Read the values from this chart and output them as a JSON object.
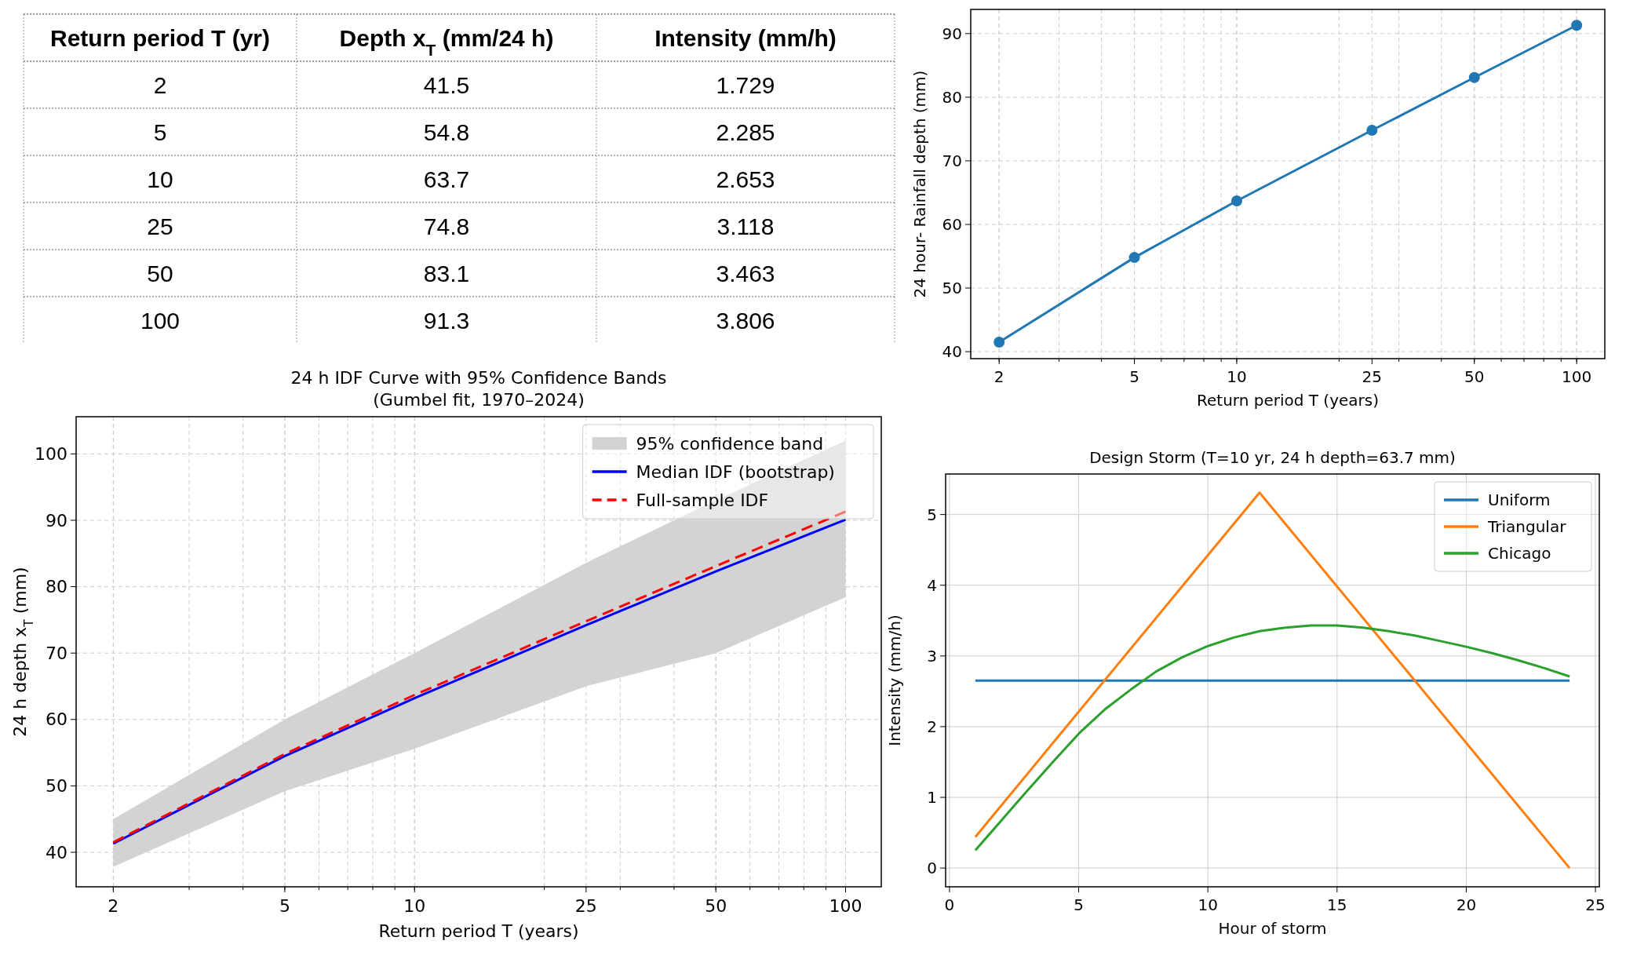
{
  "chart_data": [
    {
      "type": "other",
      "xlabel": "Return period T (yr)",
      "categories": [
        "2",
        "5",
        "10",
        "25",
        "50",
        "100"
      ],
      "data_labels": true,
      "series": [
        {
          "name": "Depth x$_{T}$ (mm/24 h)",
          "values": [
            41.5,
            54.8,
            63.7,
            74.8,
            83.1,
            91.3
          ]
        },
        {
          "name": "Intensity (mm/h)",
          "values": [
            1.729,
            2.285,
            2.653,
            3.118,
            3.463,
            3.806
          ]
        }
      ]
    },
    {
      "type": "line",
      "xlabel": "Return period T (years)",
      "ylabel": "24 hour- Rainfall depth (mm)",
      "x": [
        2,
        5,
        10,
        25,
        50,
        100
      ],
      "log": "x",
      "xlim": [
        1.65,
        121
      ],
      "xticks": [
        2,
        5,
        10,
        25,
        50,
        100
      ],
      "ylim": [
        38.9,
        93.8
      ],
      "yticks": [
        40,
        50,
        60,
        70,
        80,
        90
      ],
      "grid": true,
      "marker": "circle",
      "legend": false,
      "series": [
        {
          "color": "#1f77b4",
          "values": [
            41.5,
            54.8,
            63.7,
            74.8,
            83.1,
            91.3
          ]
        }
      ]
    },
    {
      "type": "line",
      "title": "24 h IDF Curve with 95% Confidence Bands\n(Gumbel fit, 1970–2024)",
      "xlabel": "Return period T (years)",
      "ylabel": "24 h depth x$_{T}$ (mm)",
      "x": [
        2,
        5,
        10,
        25,
        50,
        100
      ],
      "log": "x",
      "xlim": [
        1.64,
        121
      ],
      "xticks": [
        2,
        5,
        10,
        25,
        50,
        100
      ],
      "ylim": [
        34.8,
        105.6
      ],
      "yticks": [
        40,
        50,
        60,
        70,
        80,
        90,
        100
      ],
      "grid": true,
      "legend": "top right",
      "series": [
        {
          "name": "95% confidence band",
          "type": "area",
          "color": "#d3d3d3",
          "values": [
            null,
            null,
            null,
            null,
            null,
            null
          ],
          "lower": [
            37.8,
            49.2,
            55.6,
            65,
            70,
            78.4
          ],
          "upper": [
            45,
            60,
            70,
            83.6,
            93,
            102
          ]
        },
        {
          "name": "Median IDF (bootstrap)",
          "color": "#0000ff",
          "values": [
            41.3,
            54.5,
            63.2,
            74.2,
            82.3,
            90.1
          ]
        },
        {
          "name": "Full-sample IDF",
          "color": "#ff0000",
          "line_style": "dashed",
          "values": [
            41.5,
            54.8,
            63.7,
            74.8,
            83.1,
            91.3
          ]
        }
      ]
    },
    {
      "type": "line",
      "title": "Design Storm (T=10 yr, 24 h depth=63.7 mm)",
      "xlabel": "Hour of storm",
      "ylabel": "Intensity (mm/h)",
      "xlim": [
        -0.15,
        25.15
      ],
      "xticks": [
        0,
        5,
        10,
        15,
        20,
        25
      ],
      "ylim": [
        -0.265,
        5.573
      ],
      "yticks": [
        0,
        1,
        2,
        3,
        4,
        5
      ],
      "grid": true,
      "legend": "top right",
      "series": [
        {
          "name": "Uniform",
          "color": "#1f77b4",
          "x": [
            1,
            24
          ],
          "values": [
            2.65,
            2.65
          ]
        },
        {
          "name": "Triangular",
          "color": "#ff7f0e",
          "x": [
            1,
            12,
            24
          ],
          "values": [
            0.44,
            5.31,
            0
          ]
        },
        {
          "name": "Chicago",
          "color": "#2ca02c",
          "x": [
            1,
            2,
            3,
            4,
            5,
            6,
            7,
            8,
            9,
            10,
            11,
            12,
            13,
            14,
            15,
            16,
            17,
            18,
            19,
            20,
            21,
            22,
            23,
            24
          ],
          "values": [
            0.25,
            0.67,
            1.09,
            1.5,
            1.9,
            2.24,
            2.52,
            2.78,
            2.98,
            3.14,
            3.26,
            3.35,
            3.4,
            3.43,
            3.43,
            3.4,
            3.35,
            3.29,
            3.21,
            3.13,
            3.04,
            2.94,
            2.83,
            2.71
          ]
        }
      ]
    }
  ]
}
